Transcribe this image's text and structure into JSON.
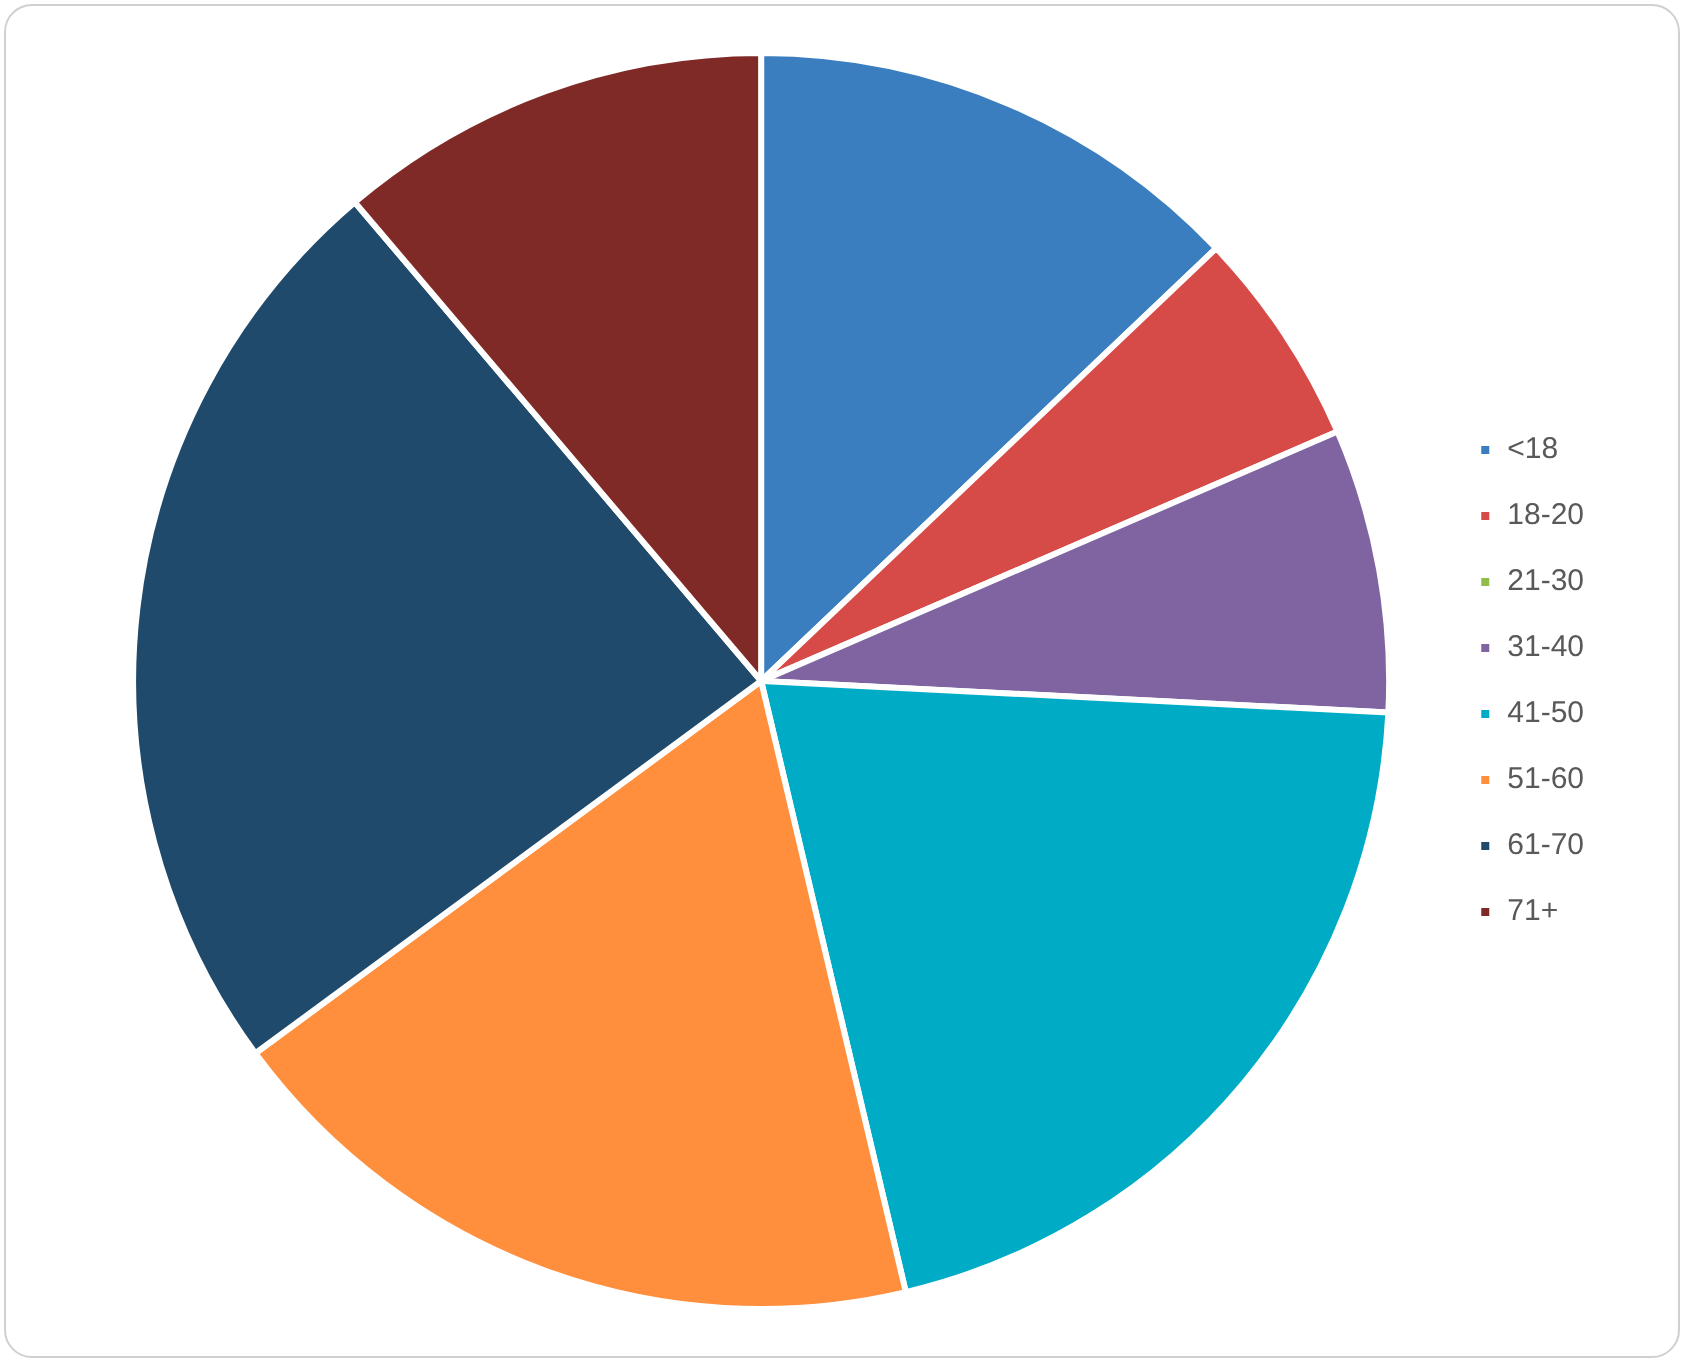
{
  "chart_data": {
    "type": "pie",
    "categories": [
      "<18",
      "18-20",
      "21-30",
      "31-40",
      "41-50",
      "51-60",
      "61-70",
      "71+"
    ],
    "values": [
      12.9,
      5.6,
      0,
      7.3,
      20.5,
      18.6,
      23.9,
      11.2
    ],
    "colors": [
      "#3a7ebf",
      "#d64b47",
      "#8fbc4a",
      "#8064a2",
      "#00acc5",
      "#ff8f3d",
      "#1f4a6b",
      "#7f2a27"
    ],
    "legend": "right"
  }
}
